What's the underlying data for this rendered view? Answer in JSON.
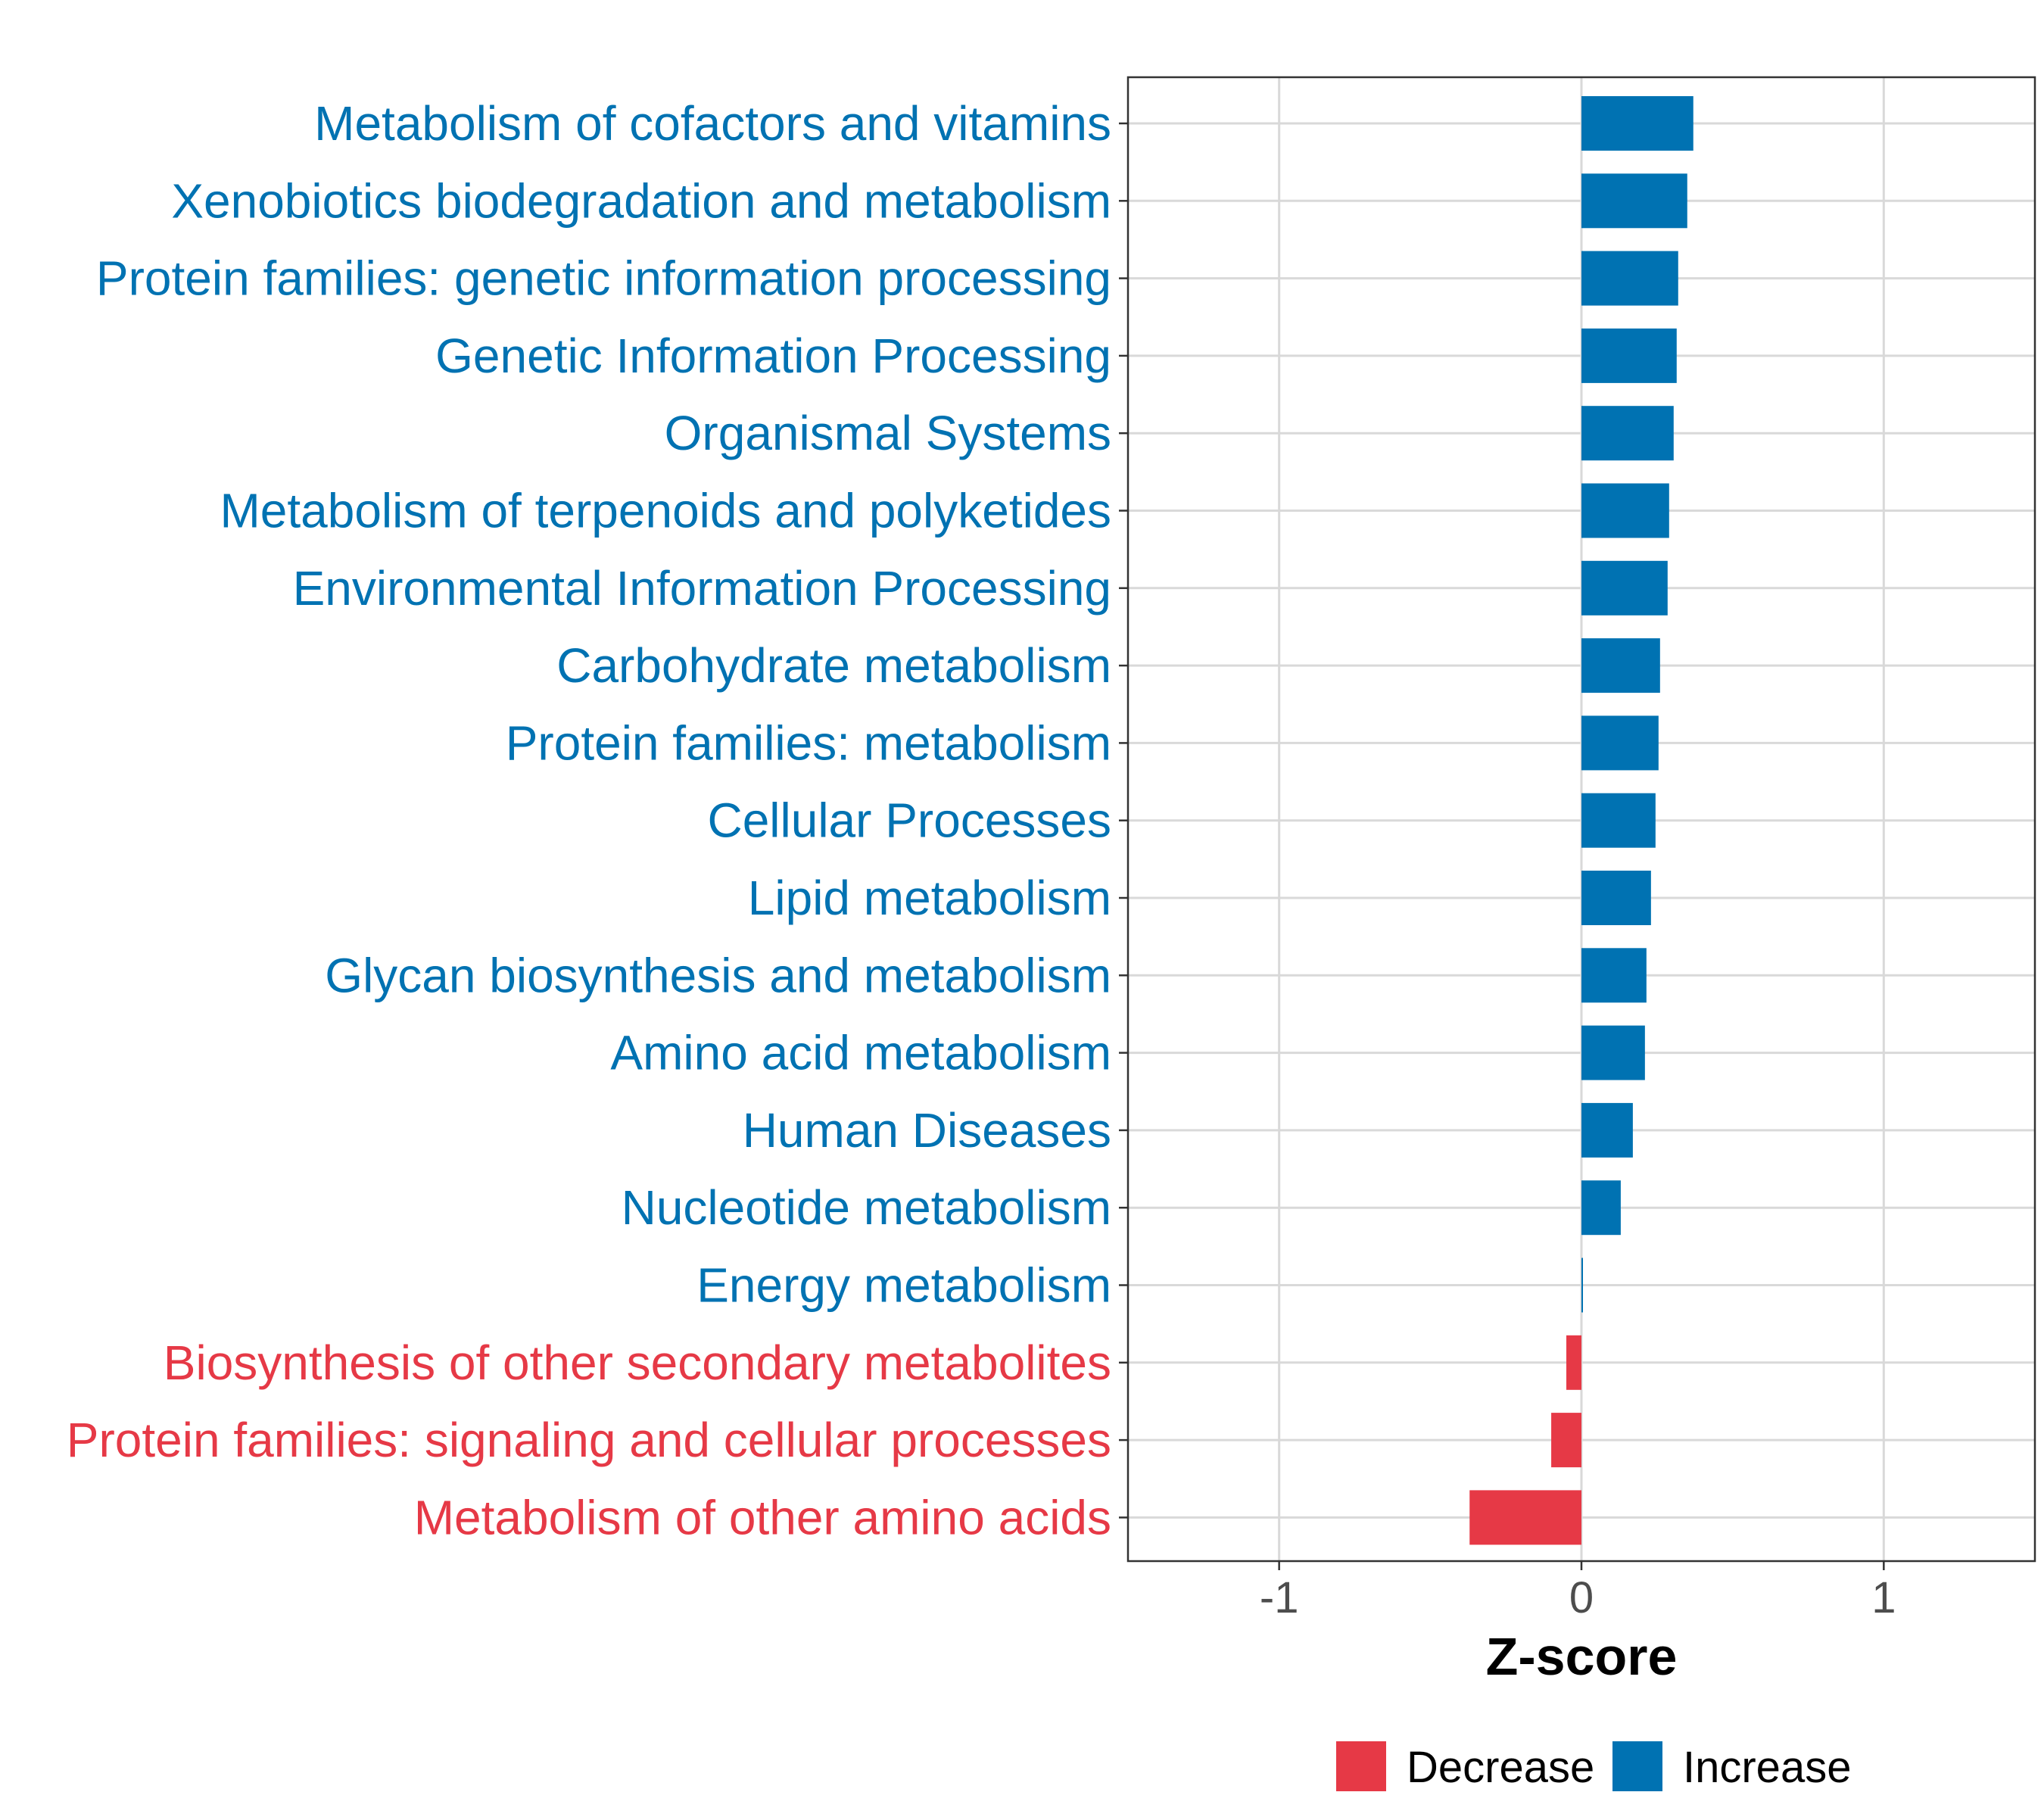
{
  "chart_data": {
    "type": "bar",
    "orientation": "horizontal",
    "categories": [
      "Metabolism of cofactors and vitamins",
      "Xenobiotics biodegradation and metabolism",
      "Protein families: genetic information processing",
      "Genetic Information Processing",
      "Organismal Systems",
      "Metabolism of terpenoids and polyketides",
      "Environmental Information Processing",
      "Carbohydrate metabolism",
      "Protein families: metabolism",
      "Cellular Processes",
      "Lipid metabolism",
      "Glycan biosynthesis and metabolism",
      "Amino acid metabolism",
      "Human Diseases",
      "Nucleotide metabolism",
      "Energy metabolism",
      "Biosynthesis of other secondary metabolites",
      "Protein families: signaling and cellular processes",
      "Metabolism of other amino acids"
    ],
    "values": [
      0.37,
      0.35,
      0.32,
      0.315,
      0.305,
      0.29,
      0.285,
      0.26,
      0.255,
      0.245,
      0.23,
      0.215,
      0.21,
      0.17,
      0.13,
      0.005,
      -0.05,
      -0.1,
      -0.37
    ],
    "direction": [
      "Increase",
      "Increase",
      "Increase",
      "Increase",
      "Increase",
      "Increase",
      "Increase",
      "Increase",
      "Increase",
      "Increase",
      "Increase",
      "Increase",
      "Increase",
      "Increase",
      "Increase",
      "Increase",
      "Decrease",
      "Decrease",
      "Decrease"
    ],
    "xlabel": "Z-score",
    "ylabel": "",
    "xlim": [
      -1.5,
      1.5
    ],
    "xticks": [
      -1,
      0,
      1
    ],
    "xtick_labels": [
      "-1",
      "0",
      "1"
    ],
    "legend": {
      "position": "bottom",
      "entries": [
        {
          "label": "Decrease",
          "color": "#E63946"
        },
        {
          "label": "Increase",
          "color": "#0077B6"
        }
      ]
    },
    "grid": true
  },
  "colors": {
    "increase": "#0072B2",
    "decrease": "#E63946",
    "grid": "#d9d9d9",
    "panel_border": "#333333"
  }
}
